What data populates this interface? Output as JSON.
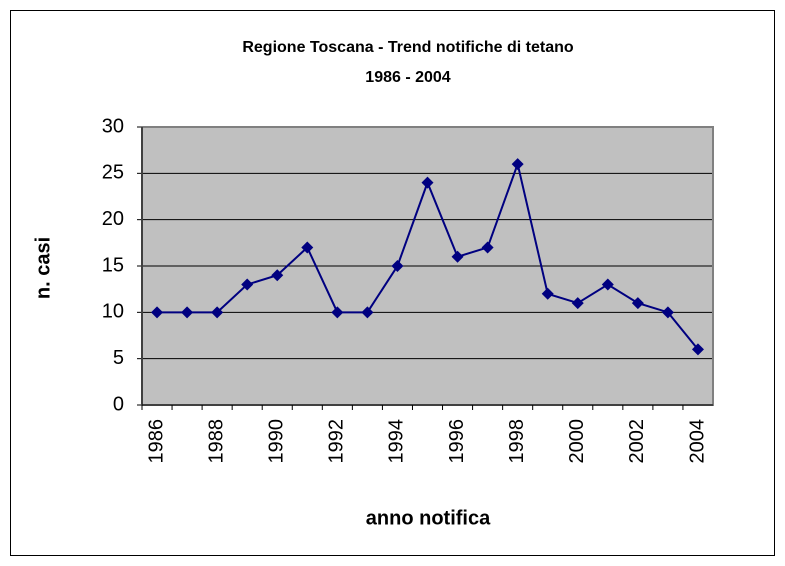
{
  "chart_data": {
    "type": "line",
    "title": "Regione Toscana - Trend notifiche di tetano",
    "subtitle": "1986 - 2004",
    "x_label": "anno notifica",
    "y_label": "n. casi",
    "categories": [
      "1986",
      null,
      "1988",
      null,
      "1990",
      null,
      "1992",
      null,
      "1994",
      null,
      "1996",
      null,
      "1998",
      null,
      "2000",
      null,
      "2002",
      null,
      "2004"
    ],
    "series": [
      {
        "name": "n. casi",
        "color": "#000080",
        "values": [
          10,
          10,
          10,
          13,
          14,
          17,
          10,
          10,
          15,
          24,
          16,
          17,
          26,
          12,
          11,
          13,
          11,
          10,
          6
        ]
      }
    ],
    "ylim": [
      0,
      30
    ],
    "yticks": [
      0,
      5,
      10,
      15,
      20,
      25,
      30
    ],
    "grid": true,
    "plot_color": "#c0c0c0"
  }
}
